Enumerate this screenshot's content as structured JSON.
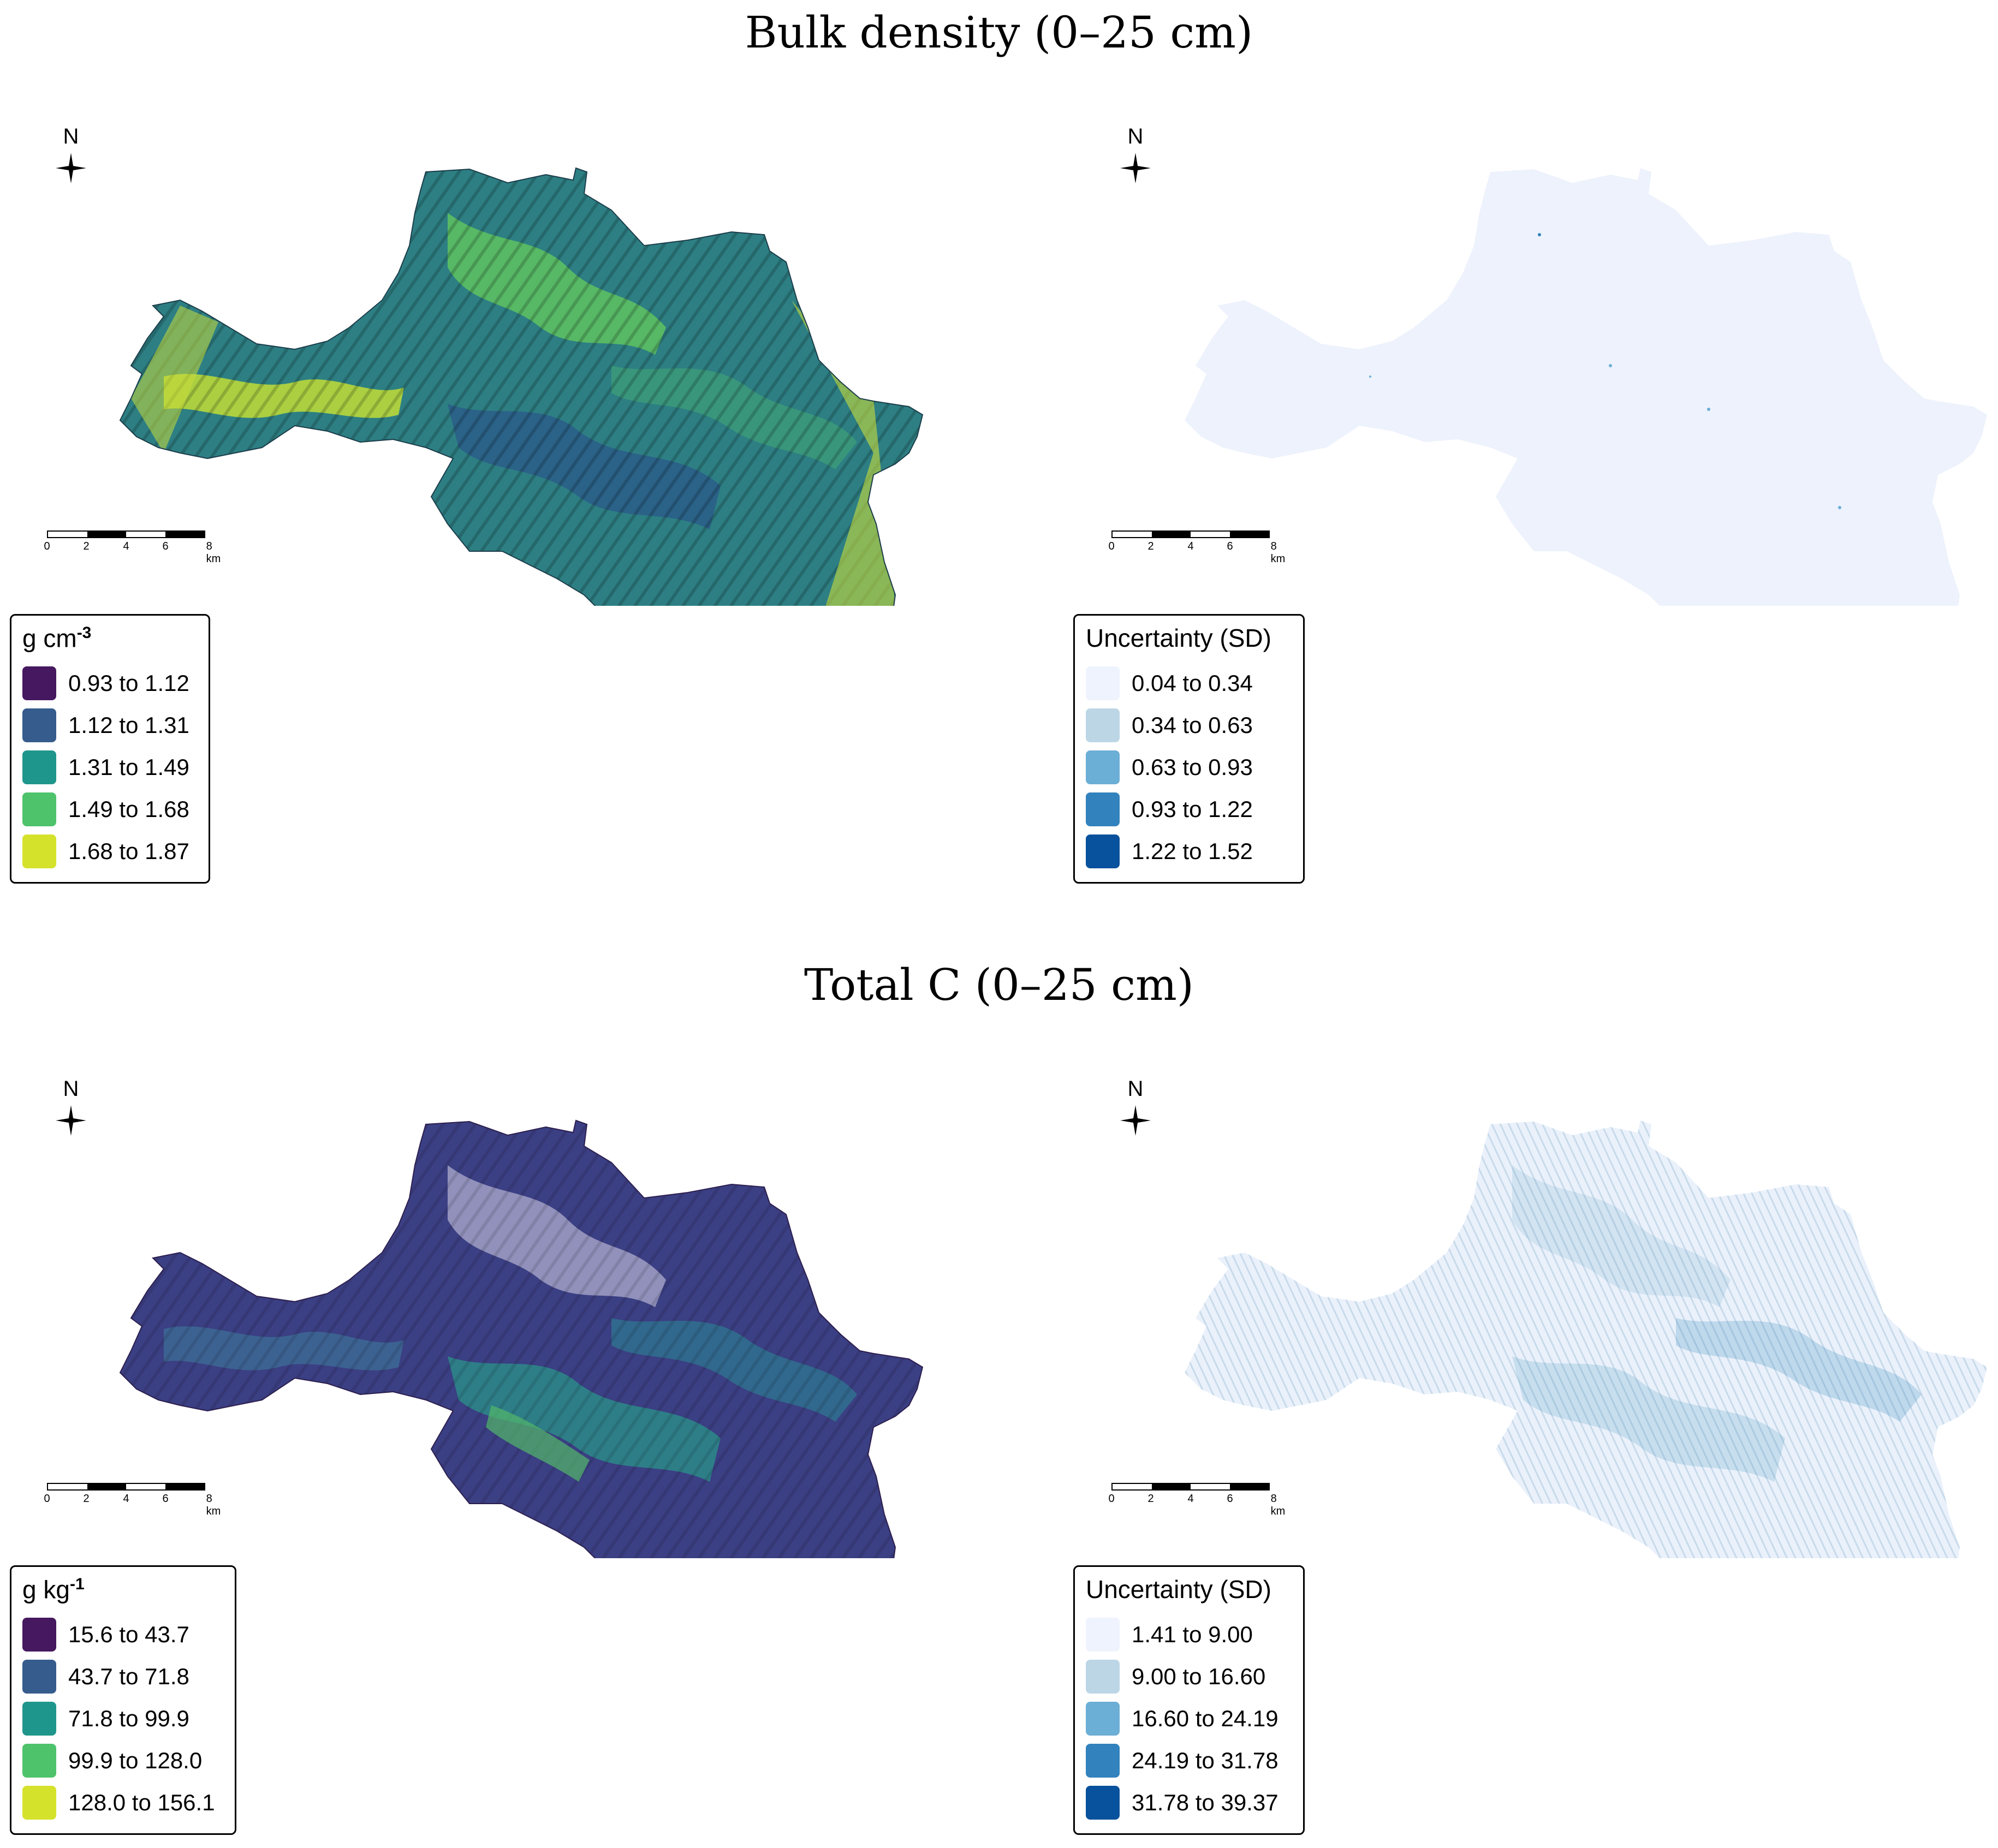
{
  "titles": {
    "bulk_density": "Bulk density (0–25 cm)",
    "total_c": "Total C (0–25 cm)"
  },
  "north_label": "N",
  "scale": {
    "ticks": [
      "0",
      "2",
      "4",
      "6",
      "8 km"
    ]
  },
  "legends": {
    "bd_mean": {
      "unit_base": "g cm",
      "unit_exp": "-3",
      "items": [
        {
          "label": "0.93 to 1.12",
          "color": "#46185f"
        },
        {
          "label": "1.12 to 1.31",
          "color": "#365c8d"
        },
        {
          "label": "1.31 to 1.49",
          "color": "#1f968b"
        },
        {
          "label": "1.49 to 1.68",
          "color": "#4ec36b"
        },
        {
          "label": "1.68 to 1.87",
          "color": "#d5e22c"
        }
      ]
    },
    "bd_sd": {
      "title": "Uncertainty (SD)",
      "items": [
        {
          "label": "0.04 to 0.34",
          "color": "#eef3fd"
        },
        {
          "label": "0.34 to 0.63",
          "color": "#bcd6e6"
        },
        {
          "label": "0.63 to 0.93",
          "color": "#6baed6"
        },
        {
          "label": "0.93 to 1.22",
          "color": "#3182bd"
        },
        {
          "label": "1.22 to 1.52",
          "color": "#08519c"
        }
      ]
    },
    "tc_mean": {
      "unit_base": "g kg",
      "unit_exp": "-1",
      "items": [
        {
          "label": "15.6 to 43.7",
          "color": "#46185f"
        },
        {
          "label": "43.7 to 71.8",
          "color": "#365c8d"
        },
        {
          "label": "71.8 to 99.9",
          "color": "#1f968b"
        },
        {
          "label": "99.9 to 128.0",
          "color": "#4ec36b"
        },
        {
          "label": "128.0 to 156.1",
          "color": "#d5e22c"
        }
      ]
    },
    "tc_sd": {
      "title": "Uncertainty (SD)",
      "items": [
        {
          "label": "1.41 to 9.00",
          "color": "#eef3fd"
        },
        {
          "label": "9.00 to 16.60",
          "color": "#bcd6e6"
        },
        {
          "label": "16.60 to 24.19",
          "color": "#6baed6"
        },
        {
          "label": "24.19 to 31.78",
          "color": "#3182bd"
        },
        {
          "label": "31.78 to 39.37",
          "color": "#08519c"
        }
      ]
    }
  }
}
